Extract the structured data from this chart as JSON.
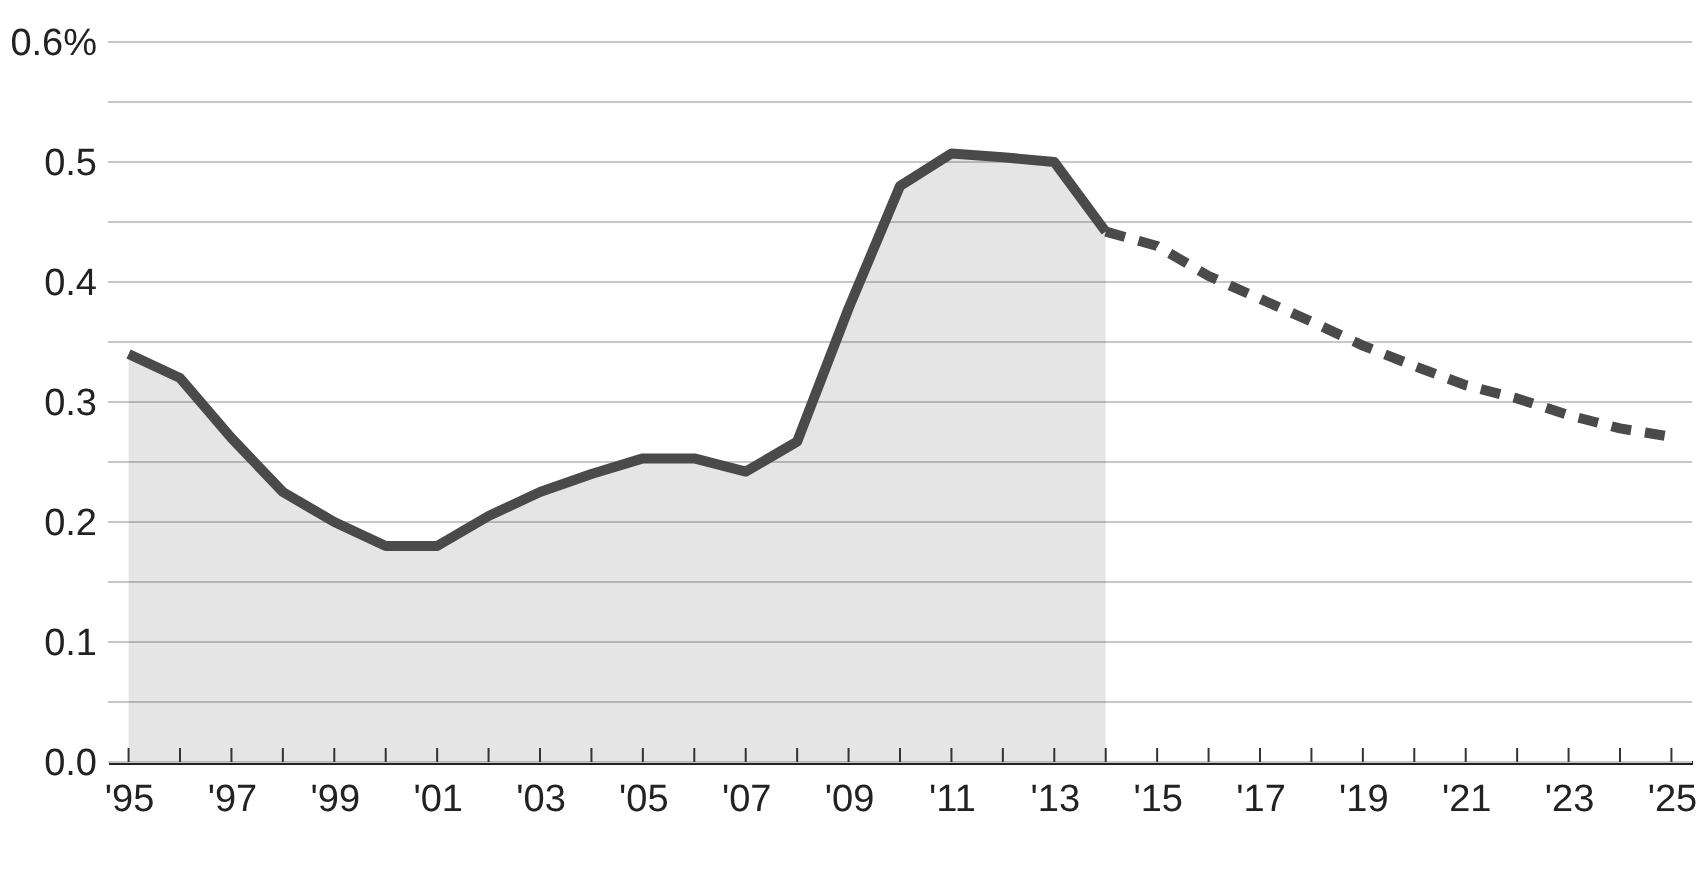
{
  "chart_data": {
    "type": "line",
    "series": [
      {
        "type": "area",
        "color": "#4a4a4a",
        "line_style": "solid",
        "x": [
          1995,
          1996,
          1997,
          1998,
          1999,
          2000,
          2001,
          2002,
          2003,
          2004,
          2005,
          2006,
          2007,
          2008,
          2009,
          2010,
          2011,
          2012,
          2013,
          2014
        ],
        "values": [
          0.34,
          0.32,
          0.27,
          0.225,
          0.2,
          0.18,
          0.18,
          0.205,
          0.225,
          0.24,
          0.253,
          0.253,
          0.242,
          0.267,
          0.378,
          0.48,
          0.507,
          0.504,
          0.5,
          0.442
        ]
      },
      {
        "color": "#4a4a4a",
        "line_style": "dashed",
        "x": [
          2014,
          2015,
          2016,
          2017,
          2018,
          2019,
          2020,
          2021,
          2022,
          2023,
          2024,
          2025
        ],
        "values": [
          0.442,
          0.43,
          0.405,
          0.386,
          0.367,
          0.347,
          0.33,
          0.314,
          0.303,
          0.289,
          0.278,
          0.271
        ]
      }
    ],
    "xlim": [
      1994.6,
      2025.4
    ],
    "xticks": [
      {
        "value": 1995,
        "label": "'95"
      },
      {
        "value": 1996,
        "label": null
      },
      {
        "value": 1997,
        "label": "'97"
      },
      {
        "value": 1998,
        "label": null
      },
      {
        "value": 1999,
        "label": "'99"
      },
      {
        "value": 2000,
        "label": null
      },
      {
        "value": 2001,
        "label": "'01"
      },
      {
        "value": 2002,
        "label": null
      },
      {
        "value": 2003,
        "label": "'03"
      },
      {
        "value": 2004,
        "label": null
      },
      {
        "value": 2005,
        "label": "'05"
      },
      {
        "value": 2006,
        "label": null
      },
      {
        "value": 2007,
        "label": "'07"
      },
      {
        "value": 2008,
        "label": null
      },
      {
        "value": 2009,
        "label": "'09"
      },
      {
        "value": 2010,
        "label": null
      },
      {
        "value": 2011,
        "label": "'11"
      },
      {
        "value": 2012,
        "label": null
      },
      {
        "value": 2013,
        "label": "'13"
      },
      {
        "value": 2014,
        "label": null
      },
      {
        "value": 2015,
        "label": "'15"
      },
      {
        "value": 2016,
        "label": null
      },
      {
        "value": 2017,
        "label": "'17"
      },
      {
        "value": 2018,
        "label": null
      },
      {
        "value": 2019,
        "label": "'19"
      },
      {
        "value": 2020,
        "label": null
      },
      {
        "value": 2021,
        "label": "'21"
      },
      {
        "value": 2022,
        "label": null
      },
      {
        "value": 2023,
        "label": "'23"
      },
      {
        "value": 2024,
        "label": null
      },
      {
        "value": 2025,
        "label": "'25"
      }
    ],
    "ylim": [
      0,
      0.6
    ],
    "yticks": [
      {
        "value": 0,
        "label": "0.0"
      },
      {
        "value": 0.05,
        "label": null
      },
      {
        "value": 0.1,
        "label": "0.1"
      },
      {
        "value": 0.15,
        "label": null
      },
      {
        "value": 0.2,
        "label": "0.2"
      },
      {
        "value": 0.25,
        "label": null
      },
      {
        "value": 0.3,
        "label": "0.3"
      },
      {
        "value": 0.35,
        "label": null
      },
      {
        "value": 0.4,
        "label": "0.4"
      },
      {
        "value": 0.45,
        "label": null
      },
      {
        "value": 0.5,
        "label": "0.5"
      },
      {
        "value": 0.55,
        "label": null
      },
      {
        "value": 0.6,
        "label": "0.6%"
      }
    ],
    "grid": "y"
  }
}
